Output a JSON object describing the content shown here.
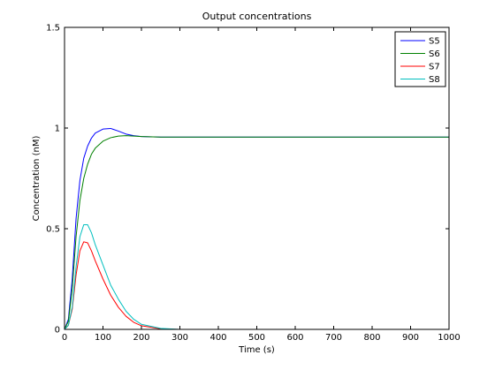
{
  "chart_data": {
    "type": "line",
    "title": "Output concentrations",
    "xlabel": "Time (s)",
    "ylabel": "Concentration (nM)",
    "xlim": [
      0,
      1000
    ],
    "ylim": [
      0,
      1.5
    ],
    "xticks": [
      0,
      100,
      200,
      300,
      400,
      500,
      600,
      700,
      800,
      900,
      1000
    ],
    "yticks": [
      0,
      0.5,
      1,
      1.5
    ],
    "ytick_labels": [
      "0",
      "0.5",
      "1",
      "1.5"
    ],
    "grid": false,
    "legend_position": "top-right",
    "series": [
      {
        "name": "S5",
        "color": "#0000ff",
        "x": [
          0,
          10,
          20,
          30,
          40,
          50,
          60,
          70,
          80,
          100,
          120,
          140,
          160,
          180,
          200,
          250,
          300,
          1000
        ],
        "y": [
          0,
          0.05,
          0.25,
          0.55,
          0.74,
          0.85,
          0.91,
          0.95,
          0.975,
          0.995,
          0.998,
          0.985,
          0.97,
          0.962,
          0.958,
          0.955,
          0.955,
          0.955
        ]
      },
      {
        "name": "S6",
        "color": "#008000",
        "x": [
          0,
          10,
          20,
          30,
          40,
          50,
          60,
          70,
          80,
          100,
          120,
          140,
          160,
          180,
          200,
          250,
          300,
          1000
        ],
        "y": [
          0,
          0.04,
          0.2,
          0.46,
          0.64,
          0.75,
          0.82,
          0.87,
          0.9,
          0.935,
          0.952,
          0.96,
          0.962,
          0.96,
          0.958,
          0.955,
          0.955,
          0.955
        ]
      },
      {
        "name": "S7",
        "color": "#ff0000",
        "x": [
          0,
          10,
          20,
          30,
          40,
          50,
          60,
          70,
          80,
          100,
          120,
          140,
          160,
          180,
          200,
          250,
          300,
          1000
        ],
        "y": [
          0,
          0.02,
          0.1,
          0.27,
          0.39,
          0.435,
          0.43,
          0.39,
          0.34,
          0.25,
          0.17,
          0.11,
          0.065,
          0.035,
          0.018,
          0.003,
          0,
          0
        ]
      },
      {
        "name": "S8",
        "color": "#00bfbf",
        "x": [
          0,
          10,
          20,
          30,
          40,
          50,
          60,
          70,
          80,
          100,
          120,
          140,
          160,
          180,
          200,
          250,
          300,
          1000
        ],
        "y": [
          0,
          0.02,
          0.11,
          0.31,
          0.46,
          0.52,
          0.52,
          0.48,
          0.42,
          0.32,
          0.22,
          0.15,
          0.09,
          0.05,
          0.025,
          0.005,
          0,
          0
        ]
      }
    ]
  }
}
